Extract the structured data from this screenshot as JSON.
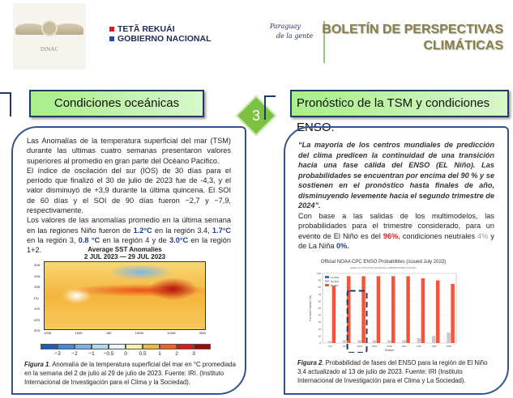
{
  "header": {
    "logo_text": "DINAC",
    "gov_line1": "TETÃ REKUÁI",
    "gov_line2": "GOBIERNO NACIONAL",
    "slogan_line1": "Paraguay",
    "slogan_line2": "de la gente",
    "bulletin_title_line1": "BOLETÍN DE PERSPECTIVAS",
    "bulletin_title_line2": "CLIMÁTICAS",
    "red": "#d71920",
    "blue": "#1f4ea3"
  },
  "left": {
    "title": "Condiciones oceánicas",
    "badge": "3",
    "p1": "Las Anomalías de la temperatura superficial del mar (TSM) durante las ultimas cuatro semanas presentaron valores superiores al promedio en gran parte del Océano Pacifico.",
    "p2": "El índice de oscilación del sur (IOS) de 30 días para el período que finalizó el 30 de julio de 2023 fue de -4,3, y el valor disminuyó de +3,9 durante la última quincena. El SOI de 60 días y el SOI de 90 días fueron −2,7 y −7,9, respectivamente.",
    "p3a": "Los valores de las anomalías promedio en la última semana en las regiones Niño fueron de ",
    "v1": "1.2°C",
    "p3b": " en la región 3.4, ",
    "v2": "1.7°C",
    "p3c": " en la región 3, ",
    "v3": "0.8 °C",
    "p3d": " en la región 4 y de ",
    "v4": "3.0°C",
    "p3e": " en la región 1+2.",
    "map_title1": "Average SST Anomalies",
    "map_title2": "2 JUL 2023 — 29 JUL 2023",
    "lat_ticks": [
      "30N",
      "20N",
      "10N",
      "EQ",
      "10S",
      "20S",
      "30S"
    ],
    "lon_ticks": [
      "120E",
      "150E",
      "180",
      "150W",
      "120W",
      "90W"
    ],
    "colorbar_labels": [
      "−3",
      "−2",
      "−1",
      "−0.5",
      "0",
      "0.5",
      "1",
      "2",
      "3"
    ],
    "colorbar_colors": [
      "#1a5fc0",
      "#3f8ce0",
      "#74b3ec",
      "#b2d8f4",
      "#e8f6fb",
      "#fbf2a4",
      "#f6b53c",
      "#f0661f",
      "#d4200f",
      "#9e0a05"
    ],
    "caption_label": "Figura 1",
    "caption": ". Anomalía de la temperatura superficial del mar en °C promediada en la semana del 2 de julio al 29 de julio de 2023. Fuente: IRI. (Instituto Internacional de Investigación para el Clima y la Sociedad)."
  },
  "right": {
    "title": "Pronóstico de la TSM y condiciones ENSO.",
    "quote": "“La mayoría de los centros mundiales de predicción del clima predicen la continuidad de una transición hacia una fase cálida del ENSO (EL Niño). Las probabilidades se encuentran por encima del 90 % y se sostienen en el pronóstico hasta finales de año, disminuyendo levemente hacia el segundo trimestre de 2024”.",
    "p_a": "Con base a las salidas de los multimodelos, las probabilidades para el trimestre considerado, para un evento de El Niño es del ",
    "nino": "96%",
    "p_b": ", condiciones neutrales ",
    "neutral": "4%",
    "p_c": " y de La Niña ",
    "nina": "0%.",
    "caption_label": "Figura 2",
    "caption": ". Probabilidad de fases del ENSO para la región de El Niño 3.4 actualizado al 13 de julio de 2023. Fuente: IRI (Instituto Internacional de Investigación para el Clima y La Sociedad)."
  },
  "chart_data": {
    "type": "bar",
    "title": "Official NOAA CPC ENSO Probabilities (issued July 2023)",
    "subtitle": "based on -0.5°/+0.5°C thresholds in ERSSTv5 Niño-3.4 index",
    "xlabel": "Season",
    "ylabel": "Percent Chance (%)",
    "ylim": [
      0,
      100
    ],
    "yticks": [
      0,
      10,
      20,
      30,
      40,
      50,
      60,
      70,
      80,
      90,
      100
    ],
    "legend": "top-left",
    "categories": [
      "JJA",
      "JAS",
      "ASO",
      "SON",
      "OND",
      "NDJ",
      "DJF",
      "JFM",
      "FMA"
    ],
    "series": [
      {
        "name": "La Niña",
        "color": "#1f77d4",
        "values": [
          0,
          0,
          0,
          0,
          0,
          0,
          0,
          0,
          0
        ]
      },
      {
        "name": "Neutral",
        "color": "#c8c8c8",
        "values": [
          3,
          4,
          4,
          4,
          4,
          4,
          7,
          10,
          15
        ]
      },
      {
        "name": "El Niño",
        "color": "#f4553a",
        "values": [
          82,
          96,
          96,
          96,
          96,
          96,
          93,
          90,
          85
        ]
      }
    ]
  }
}
